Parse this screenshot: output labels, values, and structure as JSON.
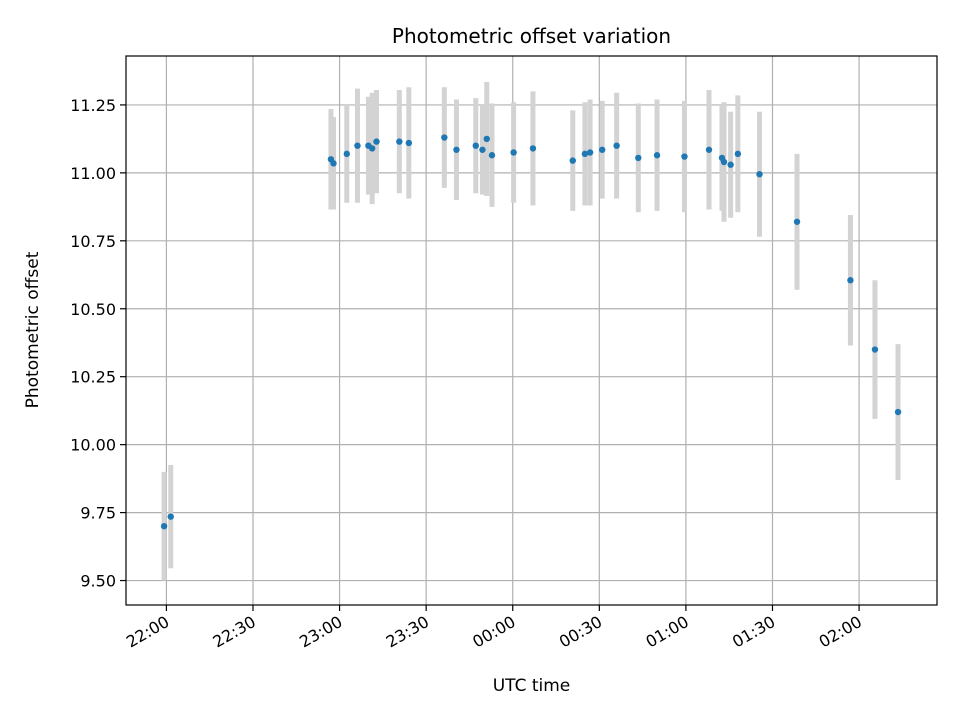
{
  "chart_data": {
    "type": "scatter",
    "title": "Photometric offset variation",
    "xlabel": "UTC time",
    "ylabel": "Photometric offset",
    "x_unit": "minutes",
    "xlim": [
      -14,
      267
    ],
    "ylim": [
      9.41,
      11.43
    ],
    "grid": true,
    "x_ticks": [
      {
        "value": 0,
        "label": "22:00"
      },
      {
        "value": 30,
        "label": "22:30"
      },
      {
        "value": 60,
        "label": "23:00"
      },
      {
        "value": 90,
        "label": "23:30"
      },
      {
        "value": 120,
        "label": "00:00"
      },
      {
        "value": 150,
        "label": "00:30"
      },
      {
        "value": 180,
        "label": "01:00"
      },
      {
        "value": 210,
        "label": "01:30"
      },
      {
        "value": 240,
        "label": "02:00"
      }
    ],
    "y_ticks": [
      {
        "value": 9.5,
        "label": "9.50"
      },
      {
        "value": 9.75,
        "label": "9.75"
      },
      {
        "value": 10.0,
        "label": "10.00"
      },
      {
        "value": 10.25,
        "label": "10.25"
      },
      {
        "value": 10.5,
        "label": "10.50"
      },
      {
        "value": 10.75,
        "label": "10.75"
      },
      {
        "value": 11.0,
        "label": "11.00"
      },
      {
        "value": 11.25,
        "label": "11.25"
      }
    ],
    "colors": {
      "point": "#1f77b4",
      "errorbar": "#d3d3d3",
      "grid": "#b0b0b0"
    },
    "series": [
      {
        "points": [
          {
            "x": -0.8,
            "y": 9.7,
            "err": 0.2
          },
          {
            "x": 1.5,
            "y": 9.735,
            "err": 0.19
          },
          {
            "x": 57.0,
            "y": 11.05,
            "err": 0.185
          },
          {
            "x": 57.9,
            "y": 11.035,
            "err": 0.17
          },
          {
            "x": 62.5,
            "y": 11.07,
            "err": 0.18
          },
          {
            "x": 66.2,
            "y": 11.1,
            "err": 0.21
          },
          {
            "x": 70.0,
            "y": 11.1,
            "err": 0.18
          },
          {
            "x": 71.3,
            "y": 11.09,
            "err": 0.205
          },
          {
            "x": 72.8,
            "y": 11.115,
            "err": 0.19
          },
          {
            "x": 80.7,
            "y": 11.115,
            "err": 0.19
          },
          {
            "x": 84.0,
            "y": 11.11,
            "err": 0.205
          },
          {
            "x": 96.3,
            "y": 11.13,
            "err": 0.185
          },
          {
            "x": 100.5,
            "y": 11.085,
            "err": 0.185
          },
          {
            "x": 107.2,
            "y": 11.1,
            "err": 0.175
          },
          {
            "x": 109.5,
            "y": 11.085,
            "err": 0.165
          },
          {
            "x": 111.0,
            "y": 11.125,
            "err": 0.21
          },
          {
            "x": 112.8,
            "y": 11.065,
            "err": 0.19
          },
          {
            "x": 120.3,
            "y": 11.075,
            "err": 0.185
          },
          {
            "x": 127.0,
            "y": 11.09,
            "err": 0.21
          },
          {
            "x": 140.8,
            "y": 11.045,
            "err": 0.185
          },
          {
            "x": 145.0,
            "y": 11.07,
            "err": 0.19
          },
          {
            "x": 146.8,
            "y": 11.075,
            "err": 0.195
          },
          {
            "x": 151.0,
            "y": 11.085,
            "err": 0.18
          },
          {
            "x": 156.0,
            "y": 11.1,
            "err": 0.195
          },
          {
            "x": 163.5,
            "y": 11.055,
            "err": 0.2
          },
          {
            "x": 170.0,
            "y": 11.065,
            "err": 0.205
          },
          {
            "x": 179.5,
            "y": 11.06,
            "err": 0.205
          },
          {
            "x": 188.0,
            "y": 11.085,
            "err": 0.22
          },
          {
            "x": 192.5,
            "y": 11.055,
            "err": 0.195
          },
          {
            "x": 193.2,
            "y": 11.04,
            "err": 0.22
          },
          {
            "x": 195.5,
            "y": 11.03,
            "err": 0.195
          },
          {
            "x": 198.0,
            "y": 11.07,
            "err": 0.215
          },
          {
            "x": 205.5,
            "y": 10.995,
            "err": 0.23
          },
          {
            "x": 218.5,
            "y": 10.82,
            "err": 0.25
          },
          {
            "x": 237.0,
            "y": 10.605,
            "err": 0.24
          },
          {
            "x": 245.5,
            "y": 10.35,
            "err": 0.255
          },
          {
            "x": 253.5,
            "y": 10.12,
            "err": 0.25
          }
        ]
      }
    ]
  }
}
